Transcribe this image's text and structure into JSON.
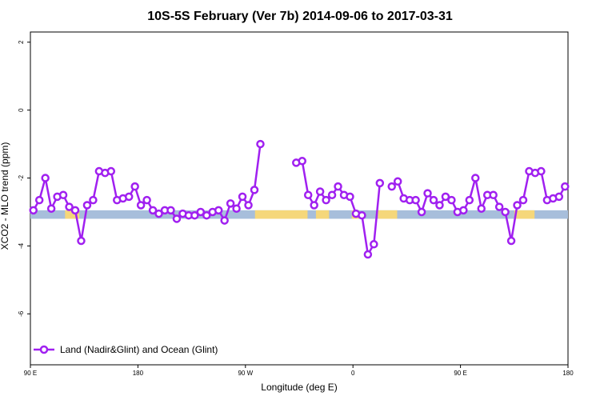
{
  "chart_data": {
    "type": "line",
    "title": "10S-5S February (Ver 7b)   2014-09-06 to 2017-03-31",
    "xlabel": "Longitude (deg E)",
    "ylabel": "XCO2 - MLO trend (ppm)",
    "xlim": [
      90,
      540
    ],
    "ylim": [
      -7.5,
      2.3
    ],
    "x_ticks": [
      {
        "value": 90,
        "label": "90 E"
      },
      {
        "value": 180,
        "label": "180"
      },
      {
        "value": 270,
        "label": "90 W"
      },
      {
        "value": 360,
        "label": "0"
      },
      {
        "value": 450,
        "label": "90 E"
      },
      {
        "value": 540,
        "label": "180"
      }
    ],
    "y_ticks": [
      {
        "value": 2,
        "label": "2"
      },
      {
        "value": 0,
        "label": "0"
      },
      {
        "value": -2,
        "label": "-2"
      },
      {
        "value": -4,
        "label": "-4"
      },
      {
        "value": -6,
        "label": "-6"
      }
    ],
    "grid": false,
    "legend_position": "bottom-left",
    "map_strip": {
      "y_range": [
        -3.2,
        -2.95
      ],
      "ocean_color": "#a7bedb",
      "land_color": "#f5d77a",
      "land_segments": [
        [
          119,
          131
        ],
        [
          278,
          322
        ],
        [
          329,
          340
        ],
        [
          359,
          365
        ],
        [
          381,
          397
        ],
        [
          495,
          512
        ]
      ]
    },
    "series": [
      {
        "name": "Land (Nadir&Glint) and Ocean (Glint)",
        "color": "#a020f0",
        "x": [
          92.5,
          97.5,
          102.5,
          107.5,
          112.5,
          117.5,
          122.5,
          127.5,
          132.5,
          137.5,
          142.5,
          147.5,
          152.5,
          157.5,
          162.5,
          167.5,
          172.5,
          177.5,
          182.5,
          187.5,
          192.5,
          197.5,
          202.5,
          207.5,
          212.5,
          217.5,
          222.5,
          227.5,
          232.5,
          237.5,
          242.5,
          247.5,
          252.5,
          257.5,
          262.5,
          267.5,
          272.5,
          277.5,
          282.5,
          null,
          312.5,
          317.5,
          322.5,
          327.5,
          332.5,
          337.5,
          342.5,
          347.5,
          352.5,
          357.5,
          362.5,
          367.5,
          372.5,
          377.5,
          382.5,
          null,
          392.5,
          397.5,
          402.5,
          407.5,
          412.5,
          417.5,
          422.5,
          427.5,
          432.5,
          437.5,
          442.5,
          447.5,
          452.5,
          457.5,
          462.5,
          467.5,
          472.5,
          477.5,
          482.5,
          487.5,
          492.5,
          497.5,
          502.5,
          507.5,
          512.5,
          517.5,
          522.5,
          527.5,
          532.5,
          537.5
        ],
        "y": [
          -2.95,
          -2.65,
          -2.0,
          -2.9,
          -2.55,
          -2.5,
          -2.85,
          -2.95,
          -3.85,
          -2.8,
          -2.65,
          -1.8,
          -1.85,
          -1.8,
          -2.65,
          -2.6,
          -2.55,
          -2.25,
          -2.8,
          -2.65,
          -2.95,
          -3.05,
          -2.95,
          -2.95,
          -3.2,
          -3.05,
          -3.1,
          -3.1,
          -3.0,
          -3.1,
          -3.0,
          -2.95,
          -3.25,
          -2.75,
          -2.9,
          -2.55,
          -2.8,
          -2.35,
          -1.0,
          null,
          -1.55,
          -1.5,
          -2.5,
          -2.8,
          -2.4,
          -2.65,
          -2.5,
          -2.25,
          -2.5,
          -2.55,
          -3.05,
          -3.1,
          -4.25,
          -3.95,
          -2.15,
          null,
          -2.25,
          -2.1,
          -2.6,
          -2.65,
          -2.65,
          -3.0,
          -2.45,
          -2.65,
          -2.8,
          -2.55,
          -2.65,
          -3.0,
          -2.95,
          -2.65,
          -2.0,
          -2.9,
          -2.5,
          -2.5,
          -2.85,
          -3.0,
          -3.85,
          -2.8,
          -2.65,
          -1.8,
          -1.85,
          -1.8,
          -2.65,
          -2.6,
          -2.55,
          -2.25
        ]
      }
    ]
  }
}
